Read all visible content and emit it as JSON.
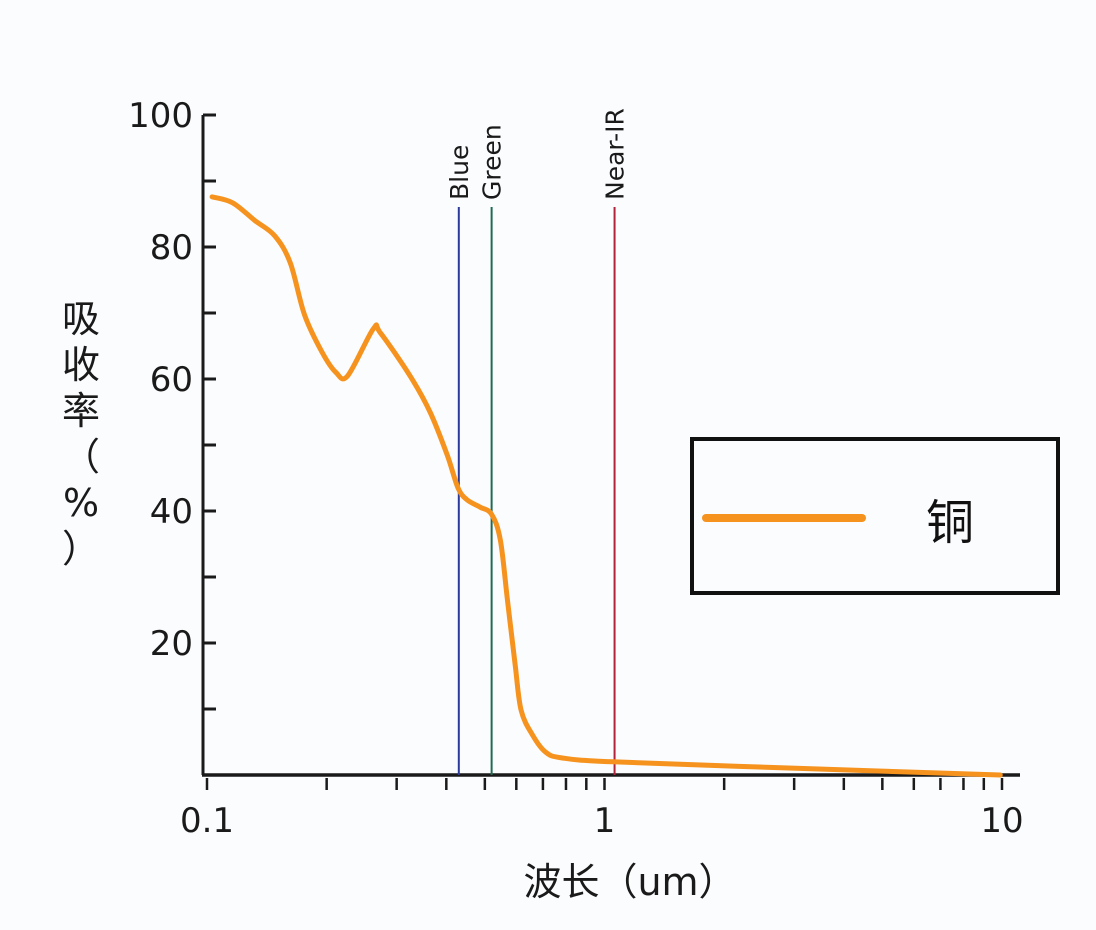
{
  "chart_data": {
    "type": "line",
    "title": "",
    "xlabel": "波长（um）",
    "ylabel": "吸收率（%）",
    "xscale": "log",
    "xlim": [
      0.1,
      10
    ],
    "ylim": [
      0,
      100
    ],
    "x_ticks": [
      "0.1",
      "1",
      "10"
    ],
    "y_ticks": [
      "20",
      "40",
      "60",
      "80",
      "100"
    ],
    "grid": false,
    "legend_position": "right-center",
    "series": [
      {
        "name": "铜",
        "color": "#f5931e",
        "x": [
          0.103,
          0.116,
          0.132,
          0.148,
          0.162,
          0.176,
          0.195,
          0.211,
          0.226,
          0.262,
          0.273,
          0.324,
          0.364,
          0.402,
          0.428,
          0.451,
          0.486,
          0.52,
          0.547,
          0.57,
          0.596,
          0.617,
          0.66,
          0.71,
          0.78,
          1.05,
          3.1,
          9.9
        ],
        "y": [
          87.6,
          86.7,
          84.0,
          81.7,
          77.6,
          69.7,
          64.0,
          61.0,
          60.5,
          67.6,
          67.0,
          60.5,
          55.0,
          48.5,
          43.5,
          41.7,
          40.6,
          39.5,
          35.6,
          26.5,
          16.7,
          9.8,
          6.0,
          3.5,
          2.6,
          2.0,
          1.0,
          0.0
        ]
      }
    ],
    "annotations": [
      {
        "type": "vline",
        "label": "Blue",
        "x": 0.43,
        "color": "#2b3a9c"
      },
      {
        "type": "vline",
        "label": "Green",
        "x": 0.52,
        "color": "#1e6b52"
      },
      {
        "type": "vline",
        "label": "Near-IR",
        "x": 1.06,
        "color": "#b0233a"
      }
    ]
  },
  "axes": {
    "xlabel": "波长（um）",
    "ylabel_chars": [
      "吸",
      "收",
      "率",
      "（",
      "%",
      "）"
    ]
  },
  "legend": {
    "label": "铜",
    "color": "#f5931e"
  }
}
